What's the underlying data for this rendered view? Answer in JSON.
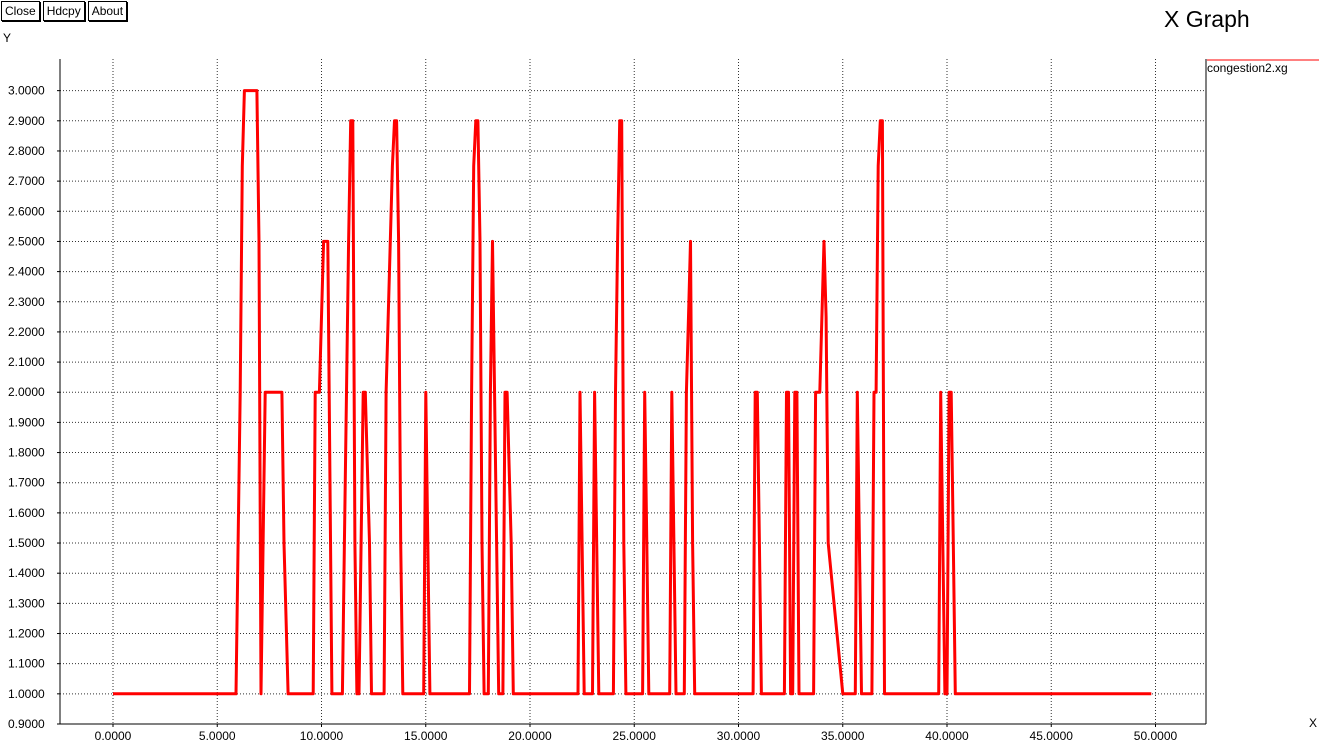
{
  "toolbar": {
    "close_label": "Close",
    "hdcpy_label": "Hdcpy",
    "about_label": "About"
  },
  "window": {
    "title": "X Graph"
  },
  "axes": {
    "x_name": "X",
    "y_name": "Y"
  },
  "chart_data": {
    "type": "line",
    "title": "X Graph",
    "xlabel": "X",
    "ylabel": "Y",
    "xlim": [
      -2.0,
      52.3
    ],
    "ylim": [
      0.9,
      3.1
    ],
    "grid": true,
    "legend_placement": "top-right",
    "x_ticks": [
      "0.0000",
      "5.0000",
      "10.0000",
      "15.0000",
      "20.0000",
      "25.0000",
      "30.0000",
      "35.0000",
      "40.0000",
      "45.0000",
      "50.0000"
    ],
    "y_ticks": [
      "0.9000",
      "1.0000",
      "1.1000",
      "1.2000",
      "1.3000",
      "1.4000",
      "1.5000",
      "1.6000",
      "1.7000",
      "1.8000",
      "1.9000",
      "2.0000",
      "2.1000",
      "2.2000",
      "2.3000",
      "2.4000",
      "2.5000",
      "2.6000",
      "2.7000",
      "2.8000",
      "2.9000",
      "3.0000"
    ],
    "series": [
      {
        "name": "congestion2.xg",
        "color": "#ff0000",
        "x": [
          0.0,
          5.9,
          6.0,
          6.1,
          6.2,
          6.3,
          6.9,
          7.0,
          7.1,
          7.2,
          7.3,
          8.1,
          8.2,
          8.4,
          9.6,
          9.7,
          9.9,
          10.0,
          10.1,
          10.3,
          10.5,
          11.0,
          11.1,
          11.2,
          11.3,
          11.4,
          11.5,
          11.6,
          11.7,
          11.8,
          12.0,
          12.1,
          12.3,
          12.4,
          12.5,
          13.0,
          13.1,
          13.3,
          13.4,
          13.5,
          13.6,
          13.7,
          13.8,
          13.9,
          14.0,
          14.1,
          14.9,
          15.0,
          15.1,
          15.2,
          15.3,
          17.1,
          17.2,
          17.3,
          17.4,
          17.5,
          17.6,
          17.7,
          17.8,
          18.0,
          18.1,
          18.2,
          18.4,
          18.5,
          18.6,
          18.7,
          18.8,
          18.9,
          19.1,
          19.2,
          19.3,
          22.3,
          22.4,
          22.5,
          22.6,
          22.7,
          23.0,
          23.1,
          23.2,
          23.3,
          23.4,
          24.0,
          24.1,
          24.2,
          24.3,
          24.4,
          24.5,
          24.6,
          25.4,
          25.5,
          25.6,
          25.7,
          26.7,
          26.8,
          26.9,
          27.0,
          27.4,
          27.5,
          27.6,
          27.7,
          27.8,
          27.9,
          30.7,
          30.8,
          30.9,
          31.0,
          31.1,
          32.2,
          32.3,
          32.4,
          32.5,
          32.6,
          32.7,
          32.8,
          32.9,
          33.0,
          33.1,
          33.6,
          33.7,
          33.9,
          34.0,
          34.1,
          34.2,
          34.3,
          35.0,
          35.6,
          35.7,
          35.8,
          35.9,
          36.4,
          36.5,
          36.6,
          36.7,
          36.8,
          36.9,
          37.0,
          39.6,
          39.7,
          39.8,
          39.9,
          40.0,
          40.1,
          40.2,
          40.3,
          40.4,
          40.5,
          49.8
        ],
        "y": [
          1.0,
          1.0,
          1.5,
          2.0,
          2.75,
          3.0,
          3.0,
          2.5,
          1.0,
          1.5,
          2.0,
          2.0,
          1.5,
          1.0,
          1.0,
          2.0,
          2.0,
          2.25,
          2.5,
          2.5,
          1.0,
          1.0,
          1.5,
          2.0,
          2.5,
          2.9,
          2.9,
          1.5,
          1.0,
          1.0,
          2.0,
          2.0,
          1.5,
          1.0,
          1.0,
          1.0,
          2.0,
          2.5,
          2.75,
          2.9,
          2.9,
          2.5,
          1.5,
          1.0,
          1.0,
          1.0,
          1.0,
          2.0,
          1.5,
          1.0,
          1.0,
          1.0,
          2.0,
          2.75,
          2.9,
          2.9,
          2.5,
          1.5,
          1.0,
          1.0,
          2.0,
          2.5,
          1.5,
          1.0,
          1.0,
          1.0,
          2.0,
          2.0,
          1.5,
          1.0,
          1.0,
          1.0,
          2.0,
          1.5,
          1.0,
          1.0,
          1.0,
          2.0,
          1.5,
          1.0,
          1.0,
          1.0,
          2.0,
          2.5,
          2.9,
          2.9,
          1.5,
          1.0,
          1.0,
          2.0,
          1.5,
          1.0,
          1.0,
          2.0,
          1.5,
          1.0,
          1.0,
          2.0,
          2.25,
          2.5,
          1.5,
          1.0,
          1.0,
          2.0,
          2.0,
          1.5,
          1.0,
          1.0,
          2.0,
          2.0,
          1.0,
          1.0,
          2.0,
          2.0,
          1.0,
          1.0,
          1.0,
          1.0,
          2.0,
          2.0,
          2.25,
          2.5,
          2.25,
          1.5,
          1.0,
          1.0,
          2.0,
          1.5,
          1.0,
          1.0,
          2.0,
          2.0,
          2.75,
          2.9,
          2.9,
          1.0,
          1.0,
          2.0,
          1.5,
          1.0,
          1.0,
          2.0,
          2.0,
          1.5,
          1.0,
          1.0,
          1.0
        ]
      }
    ]
  }
}
